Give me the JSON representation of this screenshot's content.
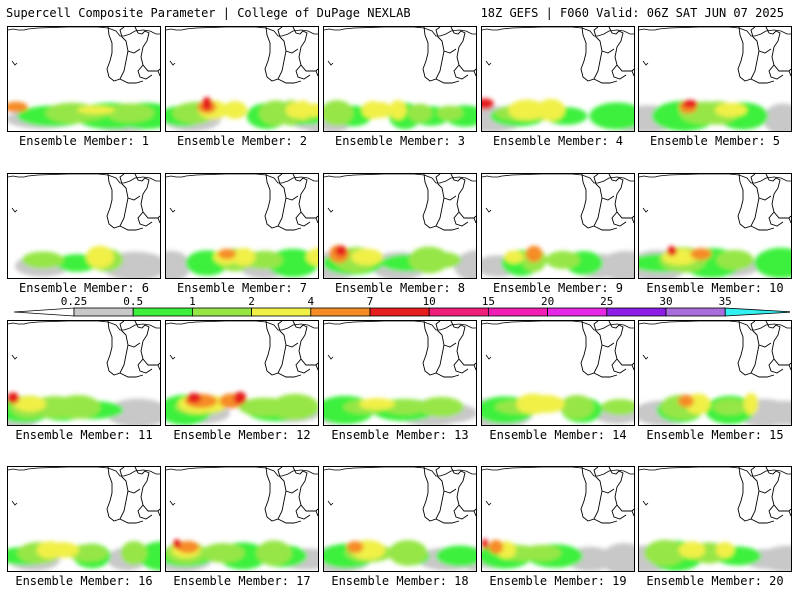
{
  "header": {
    "left": "Supercell Composite Parameter | College of DuPage NEXLAB",
    "right": "18Z GEFS | F060 Valid: 06Z SAT JUN 07 2025"
  },
  "legend": {
    "levels": [
      "0.25",
      "0.5",
      "1",
      "2",
      "4",
      "7",
      "10",
      "15",
      "20",
      "25",
      "30",
      "35"
    ],
    "colors": [
      "#c8c8c8",
      "#3cf03c",
      "#96e646",
      "#f0f046",
      "#f58c28",
      "#e61e1e",
      "#f01e78",
      "#f01eb4",
      "#e628e6",
      "#8c1ee6",
      "#aa6edc",
      "#32f0f0"
    ],
    "end_color_left": "#ffffff"
  },
  "members": [
    {
      "label": "Ensemble Member: 1",
      "blobs": [
        [
          0,
          34,
          36,
          0.27
        ],
        [
          1,
          45,
          40,
          0.33
        ],
        [
          2,
          64,
          34,
          0.38
        ],
        [
          2,
          76,
          31,
          0.29
        ],
        [
          3,
          88,
          28,
          0.18
        ],
        [
          0,
          115,
          34,
          0.38
        ],
        [
          1,
          103,
          40,
          0.42
        ],
        [
          2,
          122,
          31,
          0.35
        ],
        [
          0,
          149,
          27,
          0.26
        ],
        [
          4,
          8,
          21,
          0.29
        ],
        [
          1,
          138,
          35,
          0.42
        ]
      ]
    },
    {
      "label": "Ensemble Member: 2",
      "blobs": [
        [
          0,
          26,
          29,
          0.34
        ],
        [
          1,
          17,
          26,
          0.33
        ],
        [
          2,
          26,
          25,
          0.38
        ],
        [
          2,
          30,
          24,
          0.41
        ],
        [
          3,
          47,
          22,
          0.41
        ],
        [
          4,
          41,
          17,
          0.34
        ],
        [
          5,
          41,
          11,
          0.49
        ],
        [
          3,
          69,
          18,
          0.39
        ],
        [
          1,
          101,
          23,
          0.41
        ],
        [
          2,
          110,
          22,
          0.46
        ],
        [
          3,
          131,
          17,
          0.35
        ],
        [
          2,
          125,
          15,
          0.47
        ],
        [
          1,
          131,
          21,
          0.29
        ],
        [
          0,
          156,
          20,
          0.43
        ],
        [
          1,
          142,
          21,
          0.27
        ],
        [
          2,
          140,
          17,
          0.29
        ],
        [
          3,
          137,
          12,
          0.42
        ],
        [
          0,
          166,
          24,
          0.45
        ],
        [
          0,
          150,
          28,
          0.32
        ],
        [
          0,
          160,
          20,
          0.4
        ],
        [
          3,
          148,
          15,
          0.29
        ]
      ]
    },
    {
      "label": "Ensemble Member: 3",
      "blobs": [
        [
          0,
          10,
          19,
          0.38
        ],
        [
          1,
          29,
          21,
          0.33
        ],
        [
          2,
          13,
          21,
          0.47
        ],
        [
          3,
          49,
          17,
          0.39
        ],
        [
          3,
          58,
          15,
          0.34
        ],
        [
          3,
          74,
          13,
          0.43
        ],
        [
          1,
          81,
          18,
          0.42
        ],
        [
          2,
          96,
          16,
          0.34
        ],
        [
          2,
          126,
          17,
          0.27
        ],
        [
          1,
          107,
          21,
          0.31
        ],
        [
          1,
          141,
          23,
          0.34
        ]
      ]
    },
    {
      "label": "Ensemble Member: 4",
      "blobs": [
        [
          0,
          8,
          36,
          0.36
        ],
        [
          1,
          36,
          31,
          0.33
        ],
        [
          2,
          36,
          30,
          0.29
        ],
        [
          3,
          45,
          28,
          0.45
        ],
        [
          3,
          69,
          21,
          0.48
        ],
        [
          2,
          61,
          23,
          0.27
        ],
        [
          1,
          84,
          24,
          0.28
        ],
        [
          0,
          151,
          25,
          0.37
        ],
        [
          1,
          135,
          31,
          0.43
        ],
        [
          3,
          170,
          20,
          0.49
        ],
        [
          5,
          3,
          20,
          0.39
        ]
      ]
    },
    {
      "label": "Ensemble Member: 5",
      "blobs": [
        [
          0,
          9,
          32,
          0.38
        ],
        [
          1,
          45,
          36,
          0.48
        ],
        [
          2,
          66,
          33,
          0.42
        ],
        [
          2,
          79,
          25,
          0.43
        ],
        [
          3,
          92,
          24,
          0.31
        ],
        [
          5,
          51,
          17,
          0.29
        ],
        [
          4,
          49,
          16,
          0.35
        ],
        [
          1,
          104,
          28,
          0.43
        ],
        [
          0,
          144,
          20,
          0.43
        ],
        [
          0,
          163,
          32,
          0.4
        ]
      ]
    },
    {
      "label": "Ensemble Member: 6",
      "blobs": [
        [
          0,
          34,
          27,
          0.3
        ],
        [
          2,
          35,
          27,
          0.31
        ],
        [
          1,
          69,
          24,
          0.28
        ],
        [
          3,
          92,
          21,
          0.49
        ],
        [
          2,
          98,
          22,
          0.42
        ],
        [
          0,
          127,
          33,
          0.4
        ],
        [
          3,
          97,
          10,
          0.36
        ]
      ]
    },
    {
      "label": "Ensemble Member: 7",
      "blobs": [
        [
          0,
          5,
          20,
          0.42
        ],
        [
          1,
          41,
          24,
          0.4
        ],
        [
          2,
          69,
          22,
          0.42
        ],
        [
          3,
          78,
          17,
          0.39
        ],
        [
          3,
          60,
          19,
          0.34
        ],
        [
          4,
          61,
          16,
          0.28
        ],
        [
          0,
          99,
          26,
          0.35
        ],
        [
          2,
          90,
          18,
          0.31
        ],
        [
          1,
          127,
          29,
          0.45
        ],
        [
          2,
          99,
          23,
          0.34
        ],
        [
          3,
          154,
          21,
          0.4
        ]
      ]
    },
    {
      "label": "Ensemble Member: 8",
      "blobs": [
        [
          0,
          4,
          35,
          0.38
        ],
        [
          1,
          29,
          34,
          0.37
        ],
        [
          2,
          32,
          28,
          0.47
        ],
        [
          3,
          43,
          24,
          0.36
        ],
        [
          4,
          15,
          18,
          0.48
        ],
        [
          5,
          17,
          13,
          0.37
        ],
        [
          0,
          75,
          28,
          0.39
        ],
        [
          1,
          84,
          30,
          0.27
        ],
        [
          2,
          105,
          26,
          0.49
        ],
        [
          2,
          120,
          22,
          0.29
        ],
        [
          0,
          158,
          28,
          0.46
        ]
      ]
    },
    {
      "label": "Ensemble Member: 9",
      "blobs": [
        [
          0,
          16,
          23,
          0.3
        ],
        [
          1,
          39,
          22,
          0.41
        ],
        [
          2,
          52,
          16,
          0.44
        ],
        [
          3,
          32,
          15,
          0.28
        ],
        [
          2,
          81,
          22,
          0.33
        ],
        [
          1,
          102,
          21,
          0.38
        ],
        [
          0,
          117,
          27,
          0.34
        ],
        [
          0,
          144,
          26,
          0.42
        ],
        [
          4,
          52,
          15,
          0.44
        ],
        [
          0,
          157,
          27,
          0.28
        ]
      ]
    },
    {
      "label": "Ensemble Member: 10",
      "blobs": [
        [
          0,
          18,
          29,
          0.44
        ],
        [
          1,
          23,
          36,
          0.29
        ],
        [
          2,
          44,
          30,
          0.47
        ],
        [
          3,
          41,
          27,
          0.35
        ],
        [
          4,
          62,
          19,
          0.32
        ],
        [
          5,
          33,
          11,
          0.35
        ],
        [
          1,
          73,
          33,
          0.47
        ],
        [
          2,
          96,
          24,
          0.37
        ],
        [
          0,
          93,
          28,
          0.29
        ],
        [
          1,
          142,
          30,
          0.48
        ]
      ]
    },
    {
      "label": "Ensemble Member: 11",
      "blobs": [
        [
          0,
          4,
          31,
          0.47
        ],
        [
          1,
          16,
          31,
          0.4
        ],
        [
          2,
          21,
          25,
          0.42
        ],
        [
          3,
          22,
          24,
          0.34
        ],
        [
          5,
          5,
          14,
          0.39
        ],
        [
          2,
          47,
          32,
          0.4
        ],
        [
          1,
          54,
          26,
          0.34
        ],
        [
          2,
          70,
          29,
          0.44
        ],
        [
          1,
          84,
          35,
          0.29
        ],
        [
          0,
          130,
          32,
          0.4
        ]
      ]
    },
    {
      "label": "Ensemble Member: 12",
      "blobs": [
        [
          0,
          35,
          29,
          0.3
        ],
        [
          1,
          19,
          30,
          0.48
        ],
        [
          2,
          34,
          32,
          0.3
        ],
        [
          3,
          32,
          30,
          0.4
        ],
        [
          4,
          35,
          29,
          0.38
        ],
        [
          5,
          28,
          16,
          0.35
        ],
        [
          4,
          65,
          21,
          0.4
        ],
        [
          5,
          74,
          14,
          0.44
        ],
        [
          3,
          45,
          26,
          0.37
        ],
        [
          2,
          99,
          34,
          0.34
        ],
        [
          1,
          110,
          34,
          0.36
        ],
        [
          0,
          124,
          30,
          0.26
        ],
        [
          2,
          129,
          31,
          0.48
        ]
      ]
    },
    {
      "label": "Ensemble Member: 13",
      "blobs": [
        [
          0,
          13,
          25,
          0.31
        ],
        [
          1,
          21,
          33,
          0.45
        ],
        [
          2,
          41,
          28,
          0.26
        ],
        [
          3,
          53,
          27,
          0.26
        ],
        [
          2,
          81,
          29,
          0.28
        ],
        [
          1,
          80,
          36,
          0.35
        ],
        [
          0,
          107,
          34,
          0.37
        ],
        [
          2,
          117,
          29,
          0.37
        ],
        [
          0,
          124,
          29,
          0.28
        ]
      ]
    },
    {
      "label": "Ensemble Member: 14",
      "blobs": [
        [
          0,
          16,
          35,
          0.43
        ],
        [
          1,
          23,
          33,
          0.43
        ],
        [
          2,
          37,
          31,
          0.26
        ],
        [
          3,
          51,
          25,
          0.45
        ],
        [
          3,
          64,
          28,
          0.39
        ],
        [
          2,
          95,
          22,
          0.44
        ],
        [
          1,
          100,
          23,
          0.4
        ],
        [
          0,
          135,
          25,
          0.3
        ],
        [
          2,
          138,
          24,
          0.29
        ]
      ]
    },
    {
      "label": "Ensemble Member: 15",
      "blobs": [
        [
          0,
          25,
          31,
          0.35
        ],
        [
          1,
          41,
          26,
          0.39
        ],
        [
          2,
          43,
          28,
          0.45
        ],
        [
          3,
          59,
          19,
          0.45
        ],
        [
          4,
          47,
          14,
          0.34
        ],
        [
          2,
          91,
          22,
          0.29
        ],
        [
          1,
          91,
          28,
          0.45
        ],
        [
          0,
          125,
          28,
          0.39
        ],
        [
          0,
          146,
          31,
          0.34
        ],
        [
          3,
          112,
          11,
          0.48
        ]
      ]
    },
    {
      "label": "Ensemble Member: 16",
      "blobs": [
        [
          0,
          26,
          26,
          0.33
        ],
        [
          1,
          18,
          33,
          0.29
        ],
        [
          2,
          31,
          28,
          0.4
        ],
        [
          3,
          42,
          20,
          0.38
        ],
        [
          3,
          55,
          24,
          0.34
        ],
        [
          2,
          80,
          26,
          0.32
        ],
        [
          1,
          84,
          21,
          0.39
        ],
        [
          0,
          119,
          20,
          0.32
        ],
        [
          2,
          126,
          17,
          0.44
        ],
        [
          1,
          154,
          27,
          0.46
        ]
      ]
    },
    {
      "label": "Ensemble Member: 17",
      "blobs": [
        [
          0,
          16,
          30,
          0.36
        ],
        [
          1,
          20,
          31,
          0.34
        ],
        [
          2,
          20,
          27,
          0.41
        ],
        [
          3,
          20,
          22,
          0.36
        ],
        [
          4,
          22,
          20,
          0.33
        ],
        [
          5,
          11,
          9,
          0.34
        ],
        [
          2,
          57,
          28,
          0.36
        ],
        [
          1,
          77,
          27,
          0.43
        ],
        [
          2,
          108,
          23,
          0.46
        ],
        [
          1,
          116,
          28,
          0.35
        ],
        [
          0,
          141,
          34,
          0.29
        ]
      ]
    },
    {
      "label": "Ensemble Member: 18",
      "blobs": [
        [
          0,
          15,
          32,
          0.38
        ],
        [
          1,
          23,
          31,
          0.39
        ],
        [
          2,
          45,
          31,
          0.34
        ],
        [
          3,
          44,
          26,
          0.43
        ],
        [
          4,
          31,
          15,
          0.32
        ],
        [
          1,
          86,
          22,
          0.3
        ],
        [
          2,
          84,
          25,
          0.47
        ],
        [
          0,
          124,
          31,
          0.32
        ],
        [
          1,
          136,
          27,
          0.33
        ],
        [
          0,
          158,
          25,
          0.36
        ]
      ]
    },
    {
      "label": "Ensemble Member: 19",
      "blobs": [
        [
          0,
          12,
          23,
          0.27
        ],
        [
          1,
          23,
          30,
          0.4
        ],
        [
          2,
          38,
          24,
          0.29
        ],
        [
          3,
          24,
          15,
          0.38
        ],
        [
          4,
          14,
          13,
          0.38
        ],
        [
          5,
          3,
          7,
          0.38
        ],
        [
          2,
          60,
          25,
          0.3
        ],
        [
          1,
          73,
          31,
          0.37
        ],
        [
          0,
          108,
          24,
          0.34
        ],
        [
          0,
          142,
          23,
          0.44
        ]
      ]
    },
    {
      "label": "Ensemble Member: 20",
      "blobs": [
        [
          0,
          6,
          36,
          0.38
        ],
        [
          1,
          37,
          30,
          0.48
        ],
        [
          2,
          26,
          27,
          0.48
        ],
        [
          3,
          53,
          20,
          0.37
        ],
        [
          2,
          70,
          22,
          0.39
        ],
        [
          1,
          99,
          26,
          0.3
        ],
        [
          0,
          130,
          27,
          0.28
        ],
        [
          0,
          149,
          28,
          0.37
        ],
        [
          3,
          86,
          14,
          0.35
        ]
      ]
    }
  ]
}
